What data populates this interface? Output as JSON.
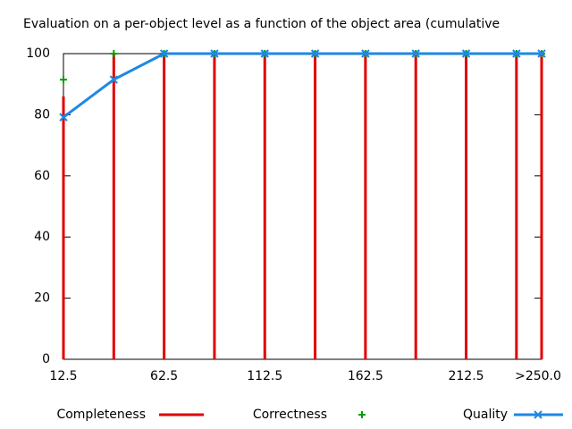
{
  "chart_data": {
    "type": "line",
    "title": "Evaluation on a per-object level as a function of the object area (cumulative",
    "x": [
      12.5,
      37.5,
      62.5,
      87.5,
      112.5,
      137.5,
      162.5,
      187.5,
      212.5,
      237.5,
      250
    ],
    "xlim": [
      12.5,
      250
    ],
    "xticks": [
      12.5,
      62.5,
      112.5,
      162.5,
      212.5,
      {
        "value": 250,
        "label": ">250.0"
      }
    ],
    "ylim": [
      0,
      100
    ],
    "yticks": [
      0,
      20,
      40,
      60,
      80,
      100
    ],
    "series": [
      {
        "name": "Completeness",
        "type": "impulse",
        "color": "#e00000",
        "values": [
          86,
          100,
          100,
          100,
          100,
          100,
          100,
          100,
          100,
          100,
          100
        ]
      },
      {
        "name": "Correctness",
        "type": "scatter",
        "color": "#00a000",
        "values": [
          91.5,
          100,
          100,
          100,
          100,
          100,
          100,
          100,
          100,
          100,
          100
        ]
      },
      {
        "name": "Quality",
        "type": "linespoints",
        "color": "#1e88e5",
        "values": [
          79.2,
          91.5,
          100,
          100,
          100,
          100,
          100,
          100,
          100,
          100,
          100
        ]
      }
    ]
  }
}
